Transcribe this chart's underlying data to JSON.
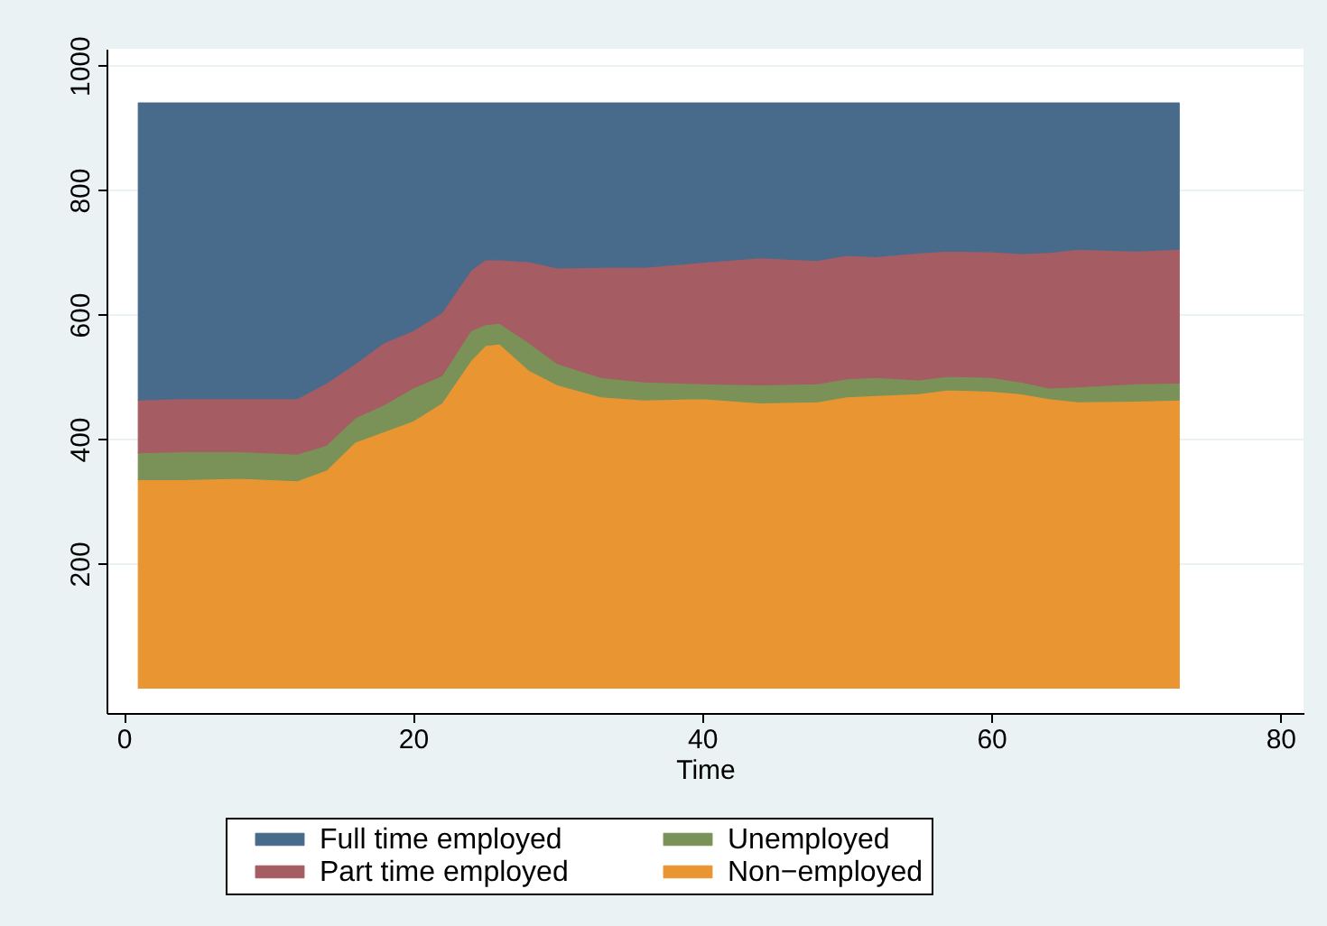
{
  "chart_data": {
    "type": "area",
    "stacked": true,
    "xlabel": "Time",
    "x": [
      1,
      4,
      8,
      12,
      14,
      16,
      18,
      20,
      22,
      24,
      25,
      26,
      28,
      30,
      33,
      36,
      40,
      44,
      48,
      50,
      52,
      55,
      57,
      60,
      62,
      64,
      66,
      70,
      73
    ],
    "series": [
      {
        "name": "Non−employed",
        "color": "#e99632",
        "values": [
          335,
          335,
          337,
          333,
          350,
          395,
          412,
          429,
          458,
          526,
          550,
          553,
          511,
          487,
          468,
          463,
          465,
          458,
          460,
          468,
          470,
          473,
          479,
          477,
          473,
          465,
          460,
          461,
          463
        ]
      },
      {
        "name": "Unemployed",
        "color": "#7a9258",
        "values": [
          43,
          45,
          43,
          43,
          40,
          39,
          43,
          53,
          44,
          48,
          34,
          33,
          44,
          34,
          31,
          29,
          24,
          29,
          29,
          29,
          29,
          22,
          22,
          22,
          19,
          17,
          24,
          28,
          27
        ]
      },
      {
        "name": "Part time employed",
        "color": "#a55c63",
        "values": [
          85,
          85,
          85,
          89,
          100,
          87,
          100,
          92,
          101,
          97,
          104,
          102,
          130,
          154,
          177,
          184,
          195,
          204,
          198,
          198,
          194,
          204,
          201,
          202,
          206,
          218,
          221,
          213,
          215
        ]
      },
      {
        "name": "Full time employed",
        "color": "#486b8c",
        "values": [
          477,
          475,
          475,
          475,
          450,
          419,
          385,
          366,
          337,
          269,
          252,
          252,
          255,
          265,
          264,
          264,
          256,
          249,
          253,
          245,
          247,
          241,
          238,
          239,
          242,
          240,
          235,
          238,
          235
        ]
      }
    ],
    "xlim": [
      -1.2,
      81.6
    ],
    "ylim": [
      -40,
      1027
    ],
    "xticks": [
      0,
      20,
      40,
      60,
      80
    ],
    "yticks": [
      200,
      400,
      600,
      800,
      1000
    ],
    "grid": "y",
    "legend": "bottom"
  }
}
